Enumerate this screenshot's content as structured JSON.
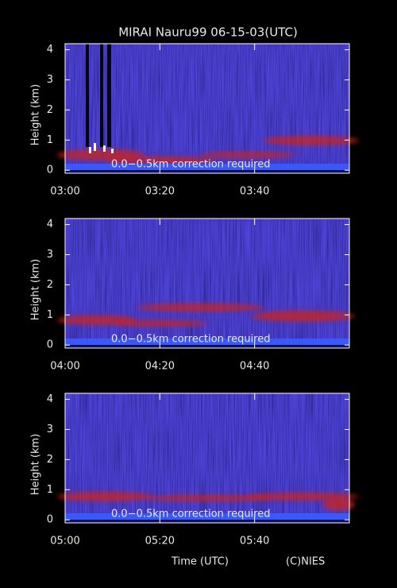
{
  "chart_data": [
    {
      "type": "heatmap",
      "title": "MIRAI Nauru99 06-15-03(UTC)",
      "ylabel": "Height (km)",
      "annotation": "0.0−0.5km correction required",
      "xlim": [
        0,
        60
      ],
      "xticks": [
        {
          "value": 0,
          "label": "03:00"
        },
        {
          "value": 20,
          "label": "03:20"
        },
        {
          "value": 40,
          "label": "03:40"
        }
      ],
      "ylim": [
        -0.1,
        4.2
      ],
      "yticks": [
        0,
        1,
        2,
        3,
        4
      ]
    },
    {
      "type": "heatmap",
      "ylabel": "Height (km)",
      "annotation": "0.0−0.5km correction required",
      "xlim": [
        0,
        60
      ],
      "xticks": [
        {
          "value": 0,
          "label": "04:00"
        },
        {
          "value": 20,
          "label": "04:20"
        },
        {
          "value": 40,
          "label": "04:40"
        }
      ],
      "ylim": [
        -0.1,
        4.2
      ],
      "yticks": [
        0,
        1,
        2,
        3,
        4
      ]
    },
    {
      "type": "heatmap",
      "ylabel": "Height (km)",
      "annotation": "0.0−0.5km correction required",
      "xlabel": "Time (UTC)",
      "credit": "(C)NIES",
      "xlim": [
        0,
        60
      ],
      "xticks": [
        {
          "value": 0,
          "label": "05:00"
        },
        {
          "value": 20,
          "label": "05:20"
        },
        {
          "value": 40,
          "label": "05:40"
        }
      ],
      "ylim": [
        -0.1,
        4.2
      ],
      "yticks": [
        0,
        1,
        2,
        3,
        4
      ]
    }
  ]
}
